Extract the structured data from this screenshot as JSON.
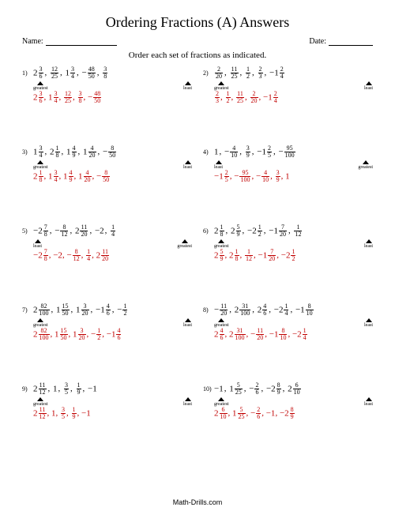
{
  "title": "Ordering Fractions (A) Answers",
  "name_label": "Name:",
  "date_label": "Date:",
  "instruction": "Order each set of fractions as indicated.",
  "greatest": "greatest",
  "least": "least",
  "footer": "Math-Drills.com",
  "problems": [
    {
      "n": "1)",
      "dir": "gl",
      "q": [
        [
          "m",
          "2",
          "3",
          "6"
        ],
        [
          "f",
          "12",
          "25"
        ],
        [
          "m",
          "1",
          "3",
          "4"
        ],
        [
          "nf",
          "48",
          "50"
        ],
        [
          "f",
          "3",
          "8"
        ]
      ],
      "a": [
        [
          "m",
          "2",
          "3",
          "6"
        ],
        [
          "m",
          "1",
          "3",
          "4"
        ],
        [
          "f",
          "12",
          "25"
        ],
        [
          "f",
          "3",
          "8"
        ],
        [
          "nf",
          "48",
          "50"
        ]
      ]
    },
    {
      "n": "2)",
      "dir": "gl",
      "q": [
        [
          "f",
          "2",
          "20"
        ],
        [
          "f",
          "11",
          "25"
        ],
        [
          "f",
          "1",
          "2"
        ],
        [
          "f",
          "2",
          "3"
        ],
        [
          "nm",
          "1",
          "2",
          "4"
        ]
      ],
      "a": [
        [
          "f",
          "2",
          "3"
        ],
        [
          "f",
          "1",
          "2"
        ],
        [
          "f",
          "11",
          "25"
        ],
        [
          "f",
          "2",
          "20"
        ],
        [
          "nm",
          "1",
          "2",
          "4"
        ]
      ]
    },
    {
      "n": "3)",
      "dir": "gl",
      "q": [
        [
          "m",
          "1",
          "3",
          "4"
        ],
        [
          "m",
          "2",
          "1",
          "8"
        ],
        [
          "m",
          "1",
          "4",
          "9"
        ],
        [
          "m",
          "1",
          "4",
          "20"
        ],
        [
          "nf",
          "8",
          "50"
        ]
      ],
      "a": [
        [
          "m",
          "2",
          "1",
          "8"
        ],
        [
          "m",
          "1",
          "3",
          "4"
        ],
        [
          "m",
          "1",
          "4",
          "9"
        ],
        [
          "m",
          "1",
          "4",
          "20"
        ],
        [
          "nf",
          "8",
          "50"
        ]
      ]
    },
    {
      "n": "4)",
      "dir": "lg",
      "q": [
        [
          "w",
          "1"
        ],
        [
          "nf",
          "4",
          "10"
        ],
        [
          "f",
          "3",
          "9"
        ],
        [
          "nm",
          "1",
          "2",
          "5"
        ],
        [
          "nf",
          "95",
          "100"
        ]
      ],
      "a": [
        [
          "nm",
          "1",
          "2",
          "5"
        ],
        [
          "nf",
          "95",
          "100"
        ],
        [
          "nf",
          "4",
          "10"
        ],
        [
          "f",
          "3",
          "9"
        ],
        [
          "w",
          "1"
        ]
      ]
    },
    {
      "n": "5)",
      "dir": "lg",
      "q": [
        [
          "nm",
          "2",
          "7",
          "8"
        ],
        [
          "nf",
          "8",
          "12"
        ],
        [
          "m",
          "2",
          "11",
          "20"
        ],
        [
          "w",
          "−2"
        ],
        [
          "f",
          "1",
          "4"
        ]
      ],
      "a": [
        [
          "nm",
          "2",
          "7",
          "8"
        ],
        [
          "w",
          "−2"
        ],
        [
          "nf",
          "8",
          "12"
        ],
        [
          "f",
          "1",
          "4"
        ],
        [
          "m",
          "2",
          "11",
          "20"
        ]
      ]
    },
    {
      "n": "6)",
      "dir": "gl",
      "q": [
        [
          "m",
          "2",
          "1",
          "8"
        ],
        [
          "m",
          "2",
          "5",
          "9"
        ],
        [
          "nm",
          "2",
          "1",
          "2"
        ],
        [
          "nm",
          "1",
          "7",
          "20"
        ],
        [
          "f",
          "1",
          "12"
        ]
      ],
      "a": [
        [
          "m",
          "2",
          "5",
          "9"
        ],
        [
          "m",
          "2",
          "1",
          "8"
        ],
        [
          "f",
          "1",
          "12"
        ],
        [
          "nm",
          "1",
          "7",
          "20"
        ],
        [
          "nm",
          "2",
          "1",
          "2"
        ]
      ]
    },
    {
      "n": "7)",
      "dir": "gl",
      "q": [
        [
          "m",
          "2",
          "82",
          "100"
        ],
        [
          "m",
          "1",
          "15",
          "50"
        ],
        [
          "m",
          "1",
          "3",
          "20"
        ],
        [
          "nm",
          "1",
          "4",
          "6"
        ],
        [
          "nf",
          "1",
          "2"
        ]
      ],
      "a": [
        [
          "m",
          "2",
          "82",
          "100"
        ],
        [
          "m",
          "1",
          "15",
          "50"
        ],
        [
          "m",
          "1",
          "3",
          "20"
        ],
        [
          "nf",
          "1",
          "2"
        ],
        [
          "nm",
          "1",
          "4",
          "6"
        ]
      ]
    },
    {
      "n": "8)",
      "dir": "gl",
      "q": [
        [
          "nf",
          "11",
          "20"
        ],
        [
          "m",
          "2",
          "31",
          "100"
        ],
        [
          "m",
          "2",
          "4",
          "6"
        ],
        [
          "nm",
          "2",
          "1",
          "4"
        ],
        [
          "nm",
          "1",
          "8",
          "10"
        ]
      ],
      "a": [
        [
          "m",
          "2",
          "4",
          "6"
        ],
        [
          "m",
          "2",
          "31",
          "100"
        ],
        [
          "nf",
          "11",
          "20"
        ],
        [
          "nm",
          "1",
          "8",
          "10"
        ],
        [
          "nm",
          "2",
          "1",
          "4"
        ]
      ]
    },
    {
      "n": "9)",
      "dir": "gl",
      "q": [
        [
          "m",
          "2",
          "11",
          "12"
        ],
        [
          "w",
          "1"
        ],
        [
          "f",
          "3",
          "5"
        ],
        [
          "f",
          "1",
          "9"
        ],
        [
          "w",
          "−1"
        ]
      ],
      "a": [
        [
          "m",
          "2",
          "11",
          "12"
        ],
        [
          "w",
          "1"
        ],
        [
          "f",
          "3",
          "5"
        ],
        [
          "f",
          "1",
          "9"
        ],
        [
          "w",
          "−1"
        ]
      ]
    },
    {
      "n": "10)",
      "dir": "gl",
      "q": [
        [
          "w",
          "−1"
        ],
        [
          "m",
          "1",
          "5",
          "25"
        ],
        [
          "nf",
          "2",
          "6"
        ],
        [
          "nm",
          "2",
          "8",
          "9"
        ],
        [
          "m",
          "2",
          "6",
          "10"
        ]
      ],
      "a": [
        [
          "m",
          "2",
          "6",
          "10"
        ],
        [
          "m",
          "1",
          "5",
          "25"
        ],
        [
          "nf",
          "2",
          "6"
        ],
        [
          "w",
          "−1"
        ],
        [
          "nm",
          "2",
          "8",
          "9"
        ]
      ]
    }
  ]
}
